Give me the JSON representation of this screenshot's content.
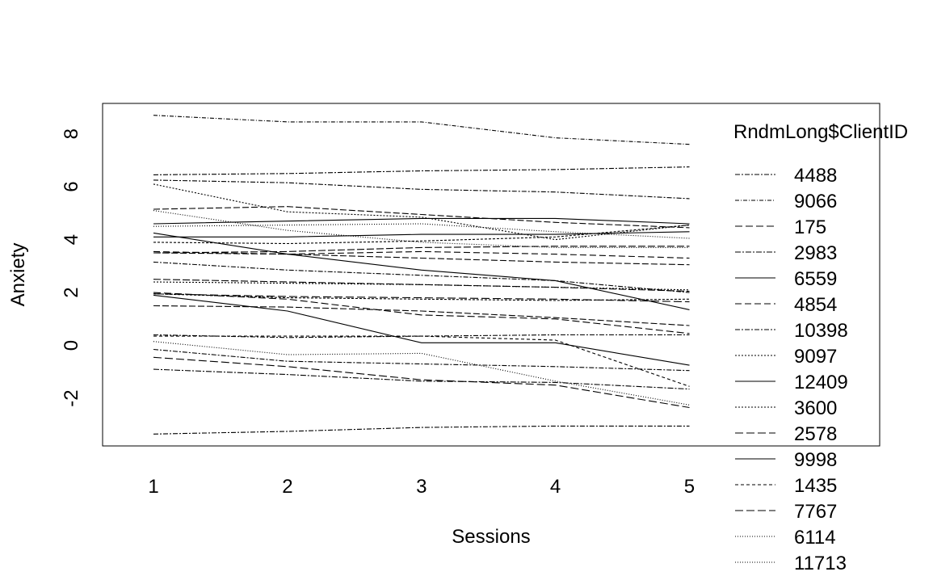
{
  "chart_data": {
    "type": "line",
    "title": "",
    "xlabel": "Sessions",
    "ylabel": "Anxiety",
    "x": [
      1,
      2,
      3,
      4,
      5
    ],
    "x_ticks": [
      "1",
      "2",
      "3",
      "4",
      "5"
    ],
    "y_ticks": [
      "-2",
      "0",
      "2",
      "4",
      "6",
      "8"
    ],
    "xlim": [
      0.62,
      6.42
    ],
    "ylim": [
      -3.8,
      9.15
    ],
    "grid": false,
    "legend_title": "RndmLong$ClientID",
    "legend_position": "right",
    "series": [
      {
        "name": "4488",
        "values": [
          6.45,
          6.5,
          6.6,
          6.65,
          6.75
        ],
        "dash": "6,2,2,2"
      },
      {
        "name": "9066",
        "values": [
          8.7,
          8.45,
          8.45,
          7.85,
          7.6
        ],
        "dash": "5,2,1,2"
      },
      {
        "name": "175",
        "values": [
          2.0,
          1.75,
          1.15,
          1.0,
          0.45
        ],
        "dash": "9,4"
      },
      {
        "name": "2983",
        "values": [
          -0.9,
          -1.1,
          -1.35,
          -1.4,
          -1.65
        ],
        "dash": "7,2,2,2"
      },
      {
        "name": "6559",
        "values": [
          4.1,
          4.1,
          4.2,
          4.2,
          4.3
        ],
        "dash": ""
      },
      {
        "name": "4854",
        "values": [
          3.55,
          3.45,
          3.55,
          3.45,
          3.3
        ],
        "dash": "8,4"
      },
      {
        "name": "10398",
        "values": [
          -3.35,
          -3.25,
          -3.1,
          -3.05,
          -3.05
        ],
        "dash": "6,2,2,2"
      },
      {
        "name": "9097",
        "values": [
          6.1,
          5.05,
          4.85,
          4.0,
          4.55
        ],
        "dash": "2,2"
      },
      {
        "name": "12409",
        "values": [
          4.6,
          4.7,
          4.8,
          4.8,
          4.6
        ],
        "dash": ""
      },
      {
        "name": "3600",
        "values": [
          2.4,
          2.35,
          2.3,
          2.2,
          2.1
        ],
        "dash": "2,2"
      },
      {
        "name": "2578",
        "values": [
          1.95,
          1.85,
          1.8,
          1.75,
          1.65
        ],
        "dash": "10,4"
      },
      {
        "name": "9998",
        "values": [
          1.9,
          1.3,
          0.1,
          0.1,
          -0.75
        ],
        "dash": ""
      },
      {
        "name": "1435",
        "values": [
          0.35,
          0.35,
          0.35,
          0.2,
          -1.55
        ],
        "dash": "4,3"
      },
      {
        "name": "7767",
        "values": [
          -0.45,
          -0.8,
          -1.3,
          -1.5,
          -2.35
        ],
        "dash": "10,4"
      },
      {
        "name": "6114",
        "values": [
          0.15,
          -0.35,
          -0.3,
          -1.35,
          -2.25
        ],
        "dash": "1,2"
      },
      {
        "name": "11713",
        "values": [
          5.1,
          4.35,
          3.9,
          3.7,
          3.7
        ],
        "dash": "1,2"
      }
    ],
    "extra_lines": [
      {
        "values": [
          4.25,
          3.45,
          2.85,
          2.45,
          1.35
        ],
        "dash": ""
      },
      {
        "values": [
          6.25,
          6.15,
          5.9,
          5.8,
          5.55
        ],
        "dash": "6,2,2,2"
      },
      {
        "values": [
          5.15,
          5.25,
          4.95,
          4.65,
          4.45
        ],
        "dash": "8,3"
      },
      {
        "values": [
          3.15,
          2.85,
          2.65,
          2.45,
          2.0
        ],
        "dash": "6,2,2,2"
      },
      {
        "values": [
          1.5,
          1.45,
          1.3,
          1.05,
          0.75
        ],
        "dash": "8,3"
      },
      {
        "values": [
          -0.15,
          -0.6,
          -0.7,
          -0.8,
          -0.95
        ],
        "dash": "6,2,2,2"
      },
      {
        "values": [
          3.5,
          3.55,
          3.7,
          3.75,
          3.75
        ],
        "dash": "9,3"
      },
      {
        "values": [
          3.9,
          3.85,
          3.95,
          4.1,
          4.55
        ],
        "dash": "3,2"
      },
      {
        "values": [
          2.5,
          2.4,
          2.3,
          2.2,
          2.05
        ],
        "dash": "9,3"
      },
      {
        "values": [
          1.95,
          1.8,
          1.75,
          1.7,
          1.75
        ],
        "dash": "3,2"
      },
      {
        "values": [
          0.4,
          0.3,
          0.35,
          0.4,
          0.4
        ],
        "dash": "6,2,2,2"
      },
      {
        "values": [
          4.5,
          4.55,
          4.6,
          4.3,
          4.05
        ],
        "dash": "1,2"
      },
      {
        "values": [
          3.5,
          3.45,
          3.3,
          3.15,
          3.05
        ],
        "dash": "8,3"
      }
    ]
  }
}
